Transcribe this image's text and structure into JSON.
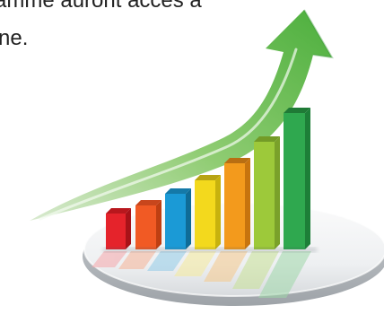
{
  "text_fragment": {
    "line1": "amme auront accès à",
    "line2": "ne."
  },
  "illustration": {
    "subject": "growth bar chart with rising arrow",
    "arrow_color": "#58b847",
    "platform_color": "#d9dce0",
    "bar_colors": [
      "#e5232b",
      "#f15a24",
      "#1b9ad6",
      "#f3d91d",
      "#f39a1c",
      "#9dc93a",
      "#2fa84f"
    ],
    "bar_values": [
      1,
      1.15,
      1.55,
      1.95,
      2.45,
      3.05,
      3.95
    ]
  }
}
